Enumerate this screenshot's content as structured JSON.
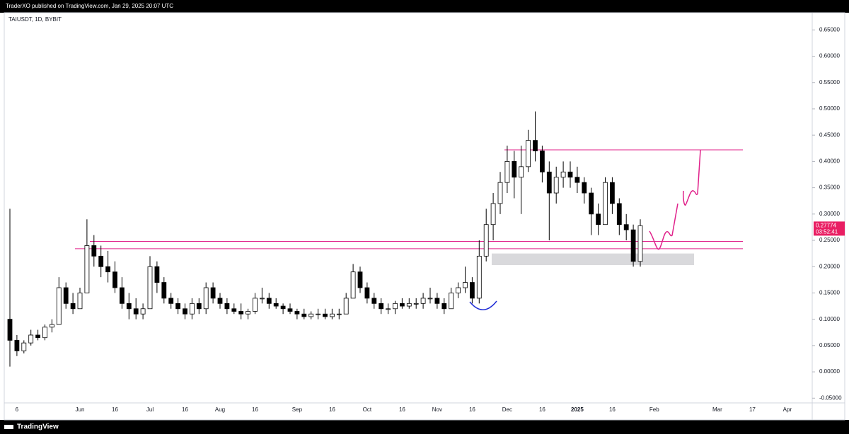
{
  "chart_data": {
    "type": "candlestick",
    "header": "TraderXO published on TradingView.com, Jan 29, 2025 20:07 UTC",
    "title": "TAIUSDT, 1D, BYBIT",
    "brand": "TradingView",
    "countdown": "03:52:41",
    "categories": [
      null,
      "6",
      null,
      null,
      null,
      null,
      null,
      null,
      null,
      null,
      "Jun",
      null,
      null,
      null,
      null,
      "16",
      null,
      null,
      null,
      null,
      "Jul",
      null,
      null,
      null,
      null,
      "16",
      null,
      null,
      null,
      null,
      "Aug",
      null,
      null,
      null,
      null,
      "16",
      null,
      null,
      null,
      null,
      null,
      "Sep",
      null,
      null,
      null,
      null,
      "16",
      null,
      null,
      null,
      null,
      "Oct",
      null,
      null,
      null,
      null,
      "16",
      null,
      null,
      null,
      null,
      "Nov",
      null,
      null,
      null,
      null,
      "16",
      null,
      null,
      null,
      null,
      "Dec",
      null,
      null,
      null,
      null,
      "16",
      null,
      null,
      null,
      null,
      "2025",
      null,
      null,
      null,
      null,
      "16",
      null,
      null,
      null,
      null,
      null,
      "Feb",
      null,
      null,
      null,
      null,
      null,
      null,
      null,
      null,
      "Mar",
      null,
      null,
      null,
      null,
      "17",
      null,
      null,
      null,
      null,
      "Apr",
      null,
      null
    ],
    "open": [
      0.1,
      0.06,
      0.04,
      0.055,
      0.07,
      0.065,
      0.085,
      0.09,
      0.16,
      0.13,
      0.12,
      0.15,
      0.24,
      0.22,
      0.2,
      0.19,
      0.16,
      0.13,
      0.12,
      0.11,
      0.12,
      0.2,
      0.17,
      0.14,
      0.13,
      0.12,
      0.11,
      0.13,
      0.12,
      0.16,
      0.14,
      0.13,
      0.12,
      0.115,
      0.11,
      0.115,
      0.14,
      0.14,
      0.13,
      0.125,
      0.12,
      0.115,
      0.11,
      0.105,
      0.11,
      0.11,
      0.105,
      0.11,
      0.11,
      0.14,
      0.19,
      0.16,
      0.14,
      0.13,
      0.12,
      0.12,
      0.13,
      0.125,
      0.13,
      0.13,
      0.14,
      0.14,
      0.13,
      0.12,
      0.15,
      0.16,
      0.17,
      0.14,
      0.22,
      0.28,
      0.32,
      0.36,
      0.4,
      0.37,
      0.39,
      0.44,
      0.42,
      0.38,
      0.34,
      0.37,
      0.38,
      0.37,
      0.36,
      0.34,
      0.3,
      0.28,
      0.36,
      0.32,
      0.28,
      0.27,
      0.21,
      null,
      null,
      null,
      null,
      null,
      null,
      null,
      null,
      null,
      null,
      null,
      null,
      null,
      null,
      null,
      null,
      null,
      null,
      null,
      null,
      null,
      null,
      null
    ],
    "high": [
      0.31,
      0.07,
      0.06,
      0.08,
      0.08,
      0.09,
      0.1,
      0.18,
      0.17,
      0.15,
      0.16,
      0.29,
      0.26,
      0.24,
      0.23,
      0.21,
      0.18,
      0.15,
      0.14,
      0.13,
      0.22,
      0.21,
      0.18,
      0.15,
      0.14,
      0.13,
      0.14,
      0.14,
      0.17,
      0.17,
      0.15,
      0.14,
      0.13,
      0.13,
      0.12,
      0.15,
      0.16,
      0.15,
      0.14,
      0.13,
      0.13,
      0.12,
      0.12,
      0.115,
      0.12,
      0.12,
      0.12,
      0.12,
      0.15,
      0.205,
      0.2,
      0.17,
      0.15,
      0.14,
      0.13,
      0.135,
      0.14,
      0.14,
      0.14,
      0.15,
      0.16,
      0.15,
      0.14,
      0.16,
      0.17,
      0.2,
      0.18,
      0.25,
      0.31,
      0.34,
      0.38,
      0.43,
      0.42,
      0.43,
      0.46,
      0.495,
      0.43,
      0.4,
      0.39,
      0.4,
      0.4,
      0.39,
      0.37,
      0.35,
      0.32,
      0.37,
      0.37,
      0.33,
      0.3,
      0.28,
      0.29,
      null,
      null,
      null,
      null,
      null,
      null,
      null,
      null,
      null,
      null,
      null,
      null,
      null,
      null,
      null,
      null,
      null,
      null,
      null,
      null,
      null,
      null,
      null
    ],
    "low": [
      0.01,
      0.03,
      0.035,
      0.05,
      0.06,
      0.06,
      0.075,
      0.09,
      0.12,
      0.11,
      0.12,
      0.15,
      0.2,
      0.18,
      0.17,
      0.15,
      0.12,
      0.1,
      0.1,
      0.1,
      0.12,
      0.15,
      0.13,
      0.12,
      0.11,
      0.1,
      0.1,
      0.11,
      0.11,
      0.13,
      0.12,
      0.11,
      0.11,
      0.1,
      0.1,
      0.11,
      0.13,
      0.12,
      0.12,
      0.11,
      0.11,
      0.1,
      0.1,
      0.1,
      0.1,
      0.1,
      0.1,
      0.1,
      0.11,
      0.14,
      0.15,
      0.13,
      0.12,
      0.11,
      0.11,
      0.11,
      0.12,
      0.12,
      0.12,
      0.12,
      0.13,
      0.12,
      0.11,
      0.12,
      0.14,
      0.15,
      0.13,
      0.13,
      0.21,
      0.25,
      0.3,
      0.34,
      0.33,
      0.3,
      0.38,
      0.4,
      0.36,
      0.25,
      0.32,
      0.35,
      0.35,
      0.34,
      0.32,
      0.26,
      0.26,
      0.28,
      0.3,
      0.26,
      0.25,
      0.2,
      0.2,
      null,
      null,
      null,
      null,
      null,
      null,
      null,
      null,
      null,
      null,
      null,
      null,
      null,
      null,
      null,
      null,
      null,
      null,
      null,
      null,
      null,
      null,
      null
    ],
    "close": [
      0.06,
      0.04,
      0.055,
      0.07,
      0.065,
      0.085,
      0.09,
      0.16,
      0.13,
      0.12,
      0.15,
      0.24,
      0.22,
      0.2,
      0.19,
      0.16,
      0.13,
      0.12,
      0.11,
      0.12,
      0.2,
      0.17,
      0.14,
      0.13,
      0.12,
      0.11,
      0.13,
      0.12,
      0.16,
      0.14,
      0.13,
      0.12,
      0.115,
      0.11,
      0.115,
      0.14,
      0.14,
      0.13,
      0.125,
      0.12,
      0.115,
      0.11,
      0.105,
      0.11,
      0.11,
      0.105,
      0.11,
      0.11,
      0.14,
      0.19,
      0.16,
      0.14,
      0.13,
      0.12,
      0.12,
      0.13,
      0.125,
      0.13,
      0.13,
      0.14,
      0.14,
      0.13,
      0.12,
      0.15,
      0.16,
      0.17,
      0.14,
      0.22,
      0.28,
      0.32,
      0.36,
      0.4,
      0.37,
      0.39,
      0.44,
      0.42,
      0.38,
      0.34,
      0.37,
      0.38,
      0.37,
      0.36,
      0.34,
      0.3,
      0.28,
      0.36,
      0.32,
      0.28,
      0.27,
      0.21,
      0.27774,
      null,
      null,
      null,
      null,
      null,
      null,
      null,
      null,
      null,
      null,
      null,
      null,
      null,
      null,
      null,
      null,
      null,
      null,
      null,
      null,
      null,
      null,
      null
    ],
    "up_color": "#ffffff",
    "down_color": "#000000",
    "line_color": "#e0218a",
    "price_color": "#e91e63",
    "hlines": [
      0.422,
      0.248,
      0.234
    ],
    "zone": [
      0.203,
      0.225
    ],
    "ylim": [
      -0.059,
      0.68
    ],
    "yticks": [
      {
        "value": -0.05,
        "label": "-0.05000"
      },
      {
        "value": 0,
        "label": "0.00000"
      },
      {
        "value": 0.05,
        "label": "0.05000"
      },
      {
        "value": 0.1,
        "label": "0.10000"
      },
      {
        "value": 0.15,
        "label": "0.15000"
      },
      {
        "value": 0.2,
        "label": "0.20000"
      },
      {
        "value": 0.25,
        "label": "0.25000"
      },
      {
        "value": 0.3,
        "label": "0.30000"
      },
      {
        "value": 0.35,
        "label": "0.35000"
      },
      {
        "value": 0.4,
        "label": "0.40000"
      },
      {
        "value": 0.45,
        "label": "0.45000"
      },
      {
        "value": 0.5,
        "label": "0.50000"
      },
      {
        "value": 0.55,
        "label": "0.55000"
      },
      {
        "value": 0.6,
        "label": "0.60000"
      },
      {
        "value": 0.65,
        "label": "0.65000"
      }
    ],
    "grid": false
  }
}
